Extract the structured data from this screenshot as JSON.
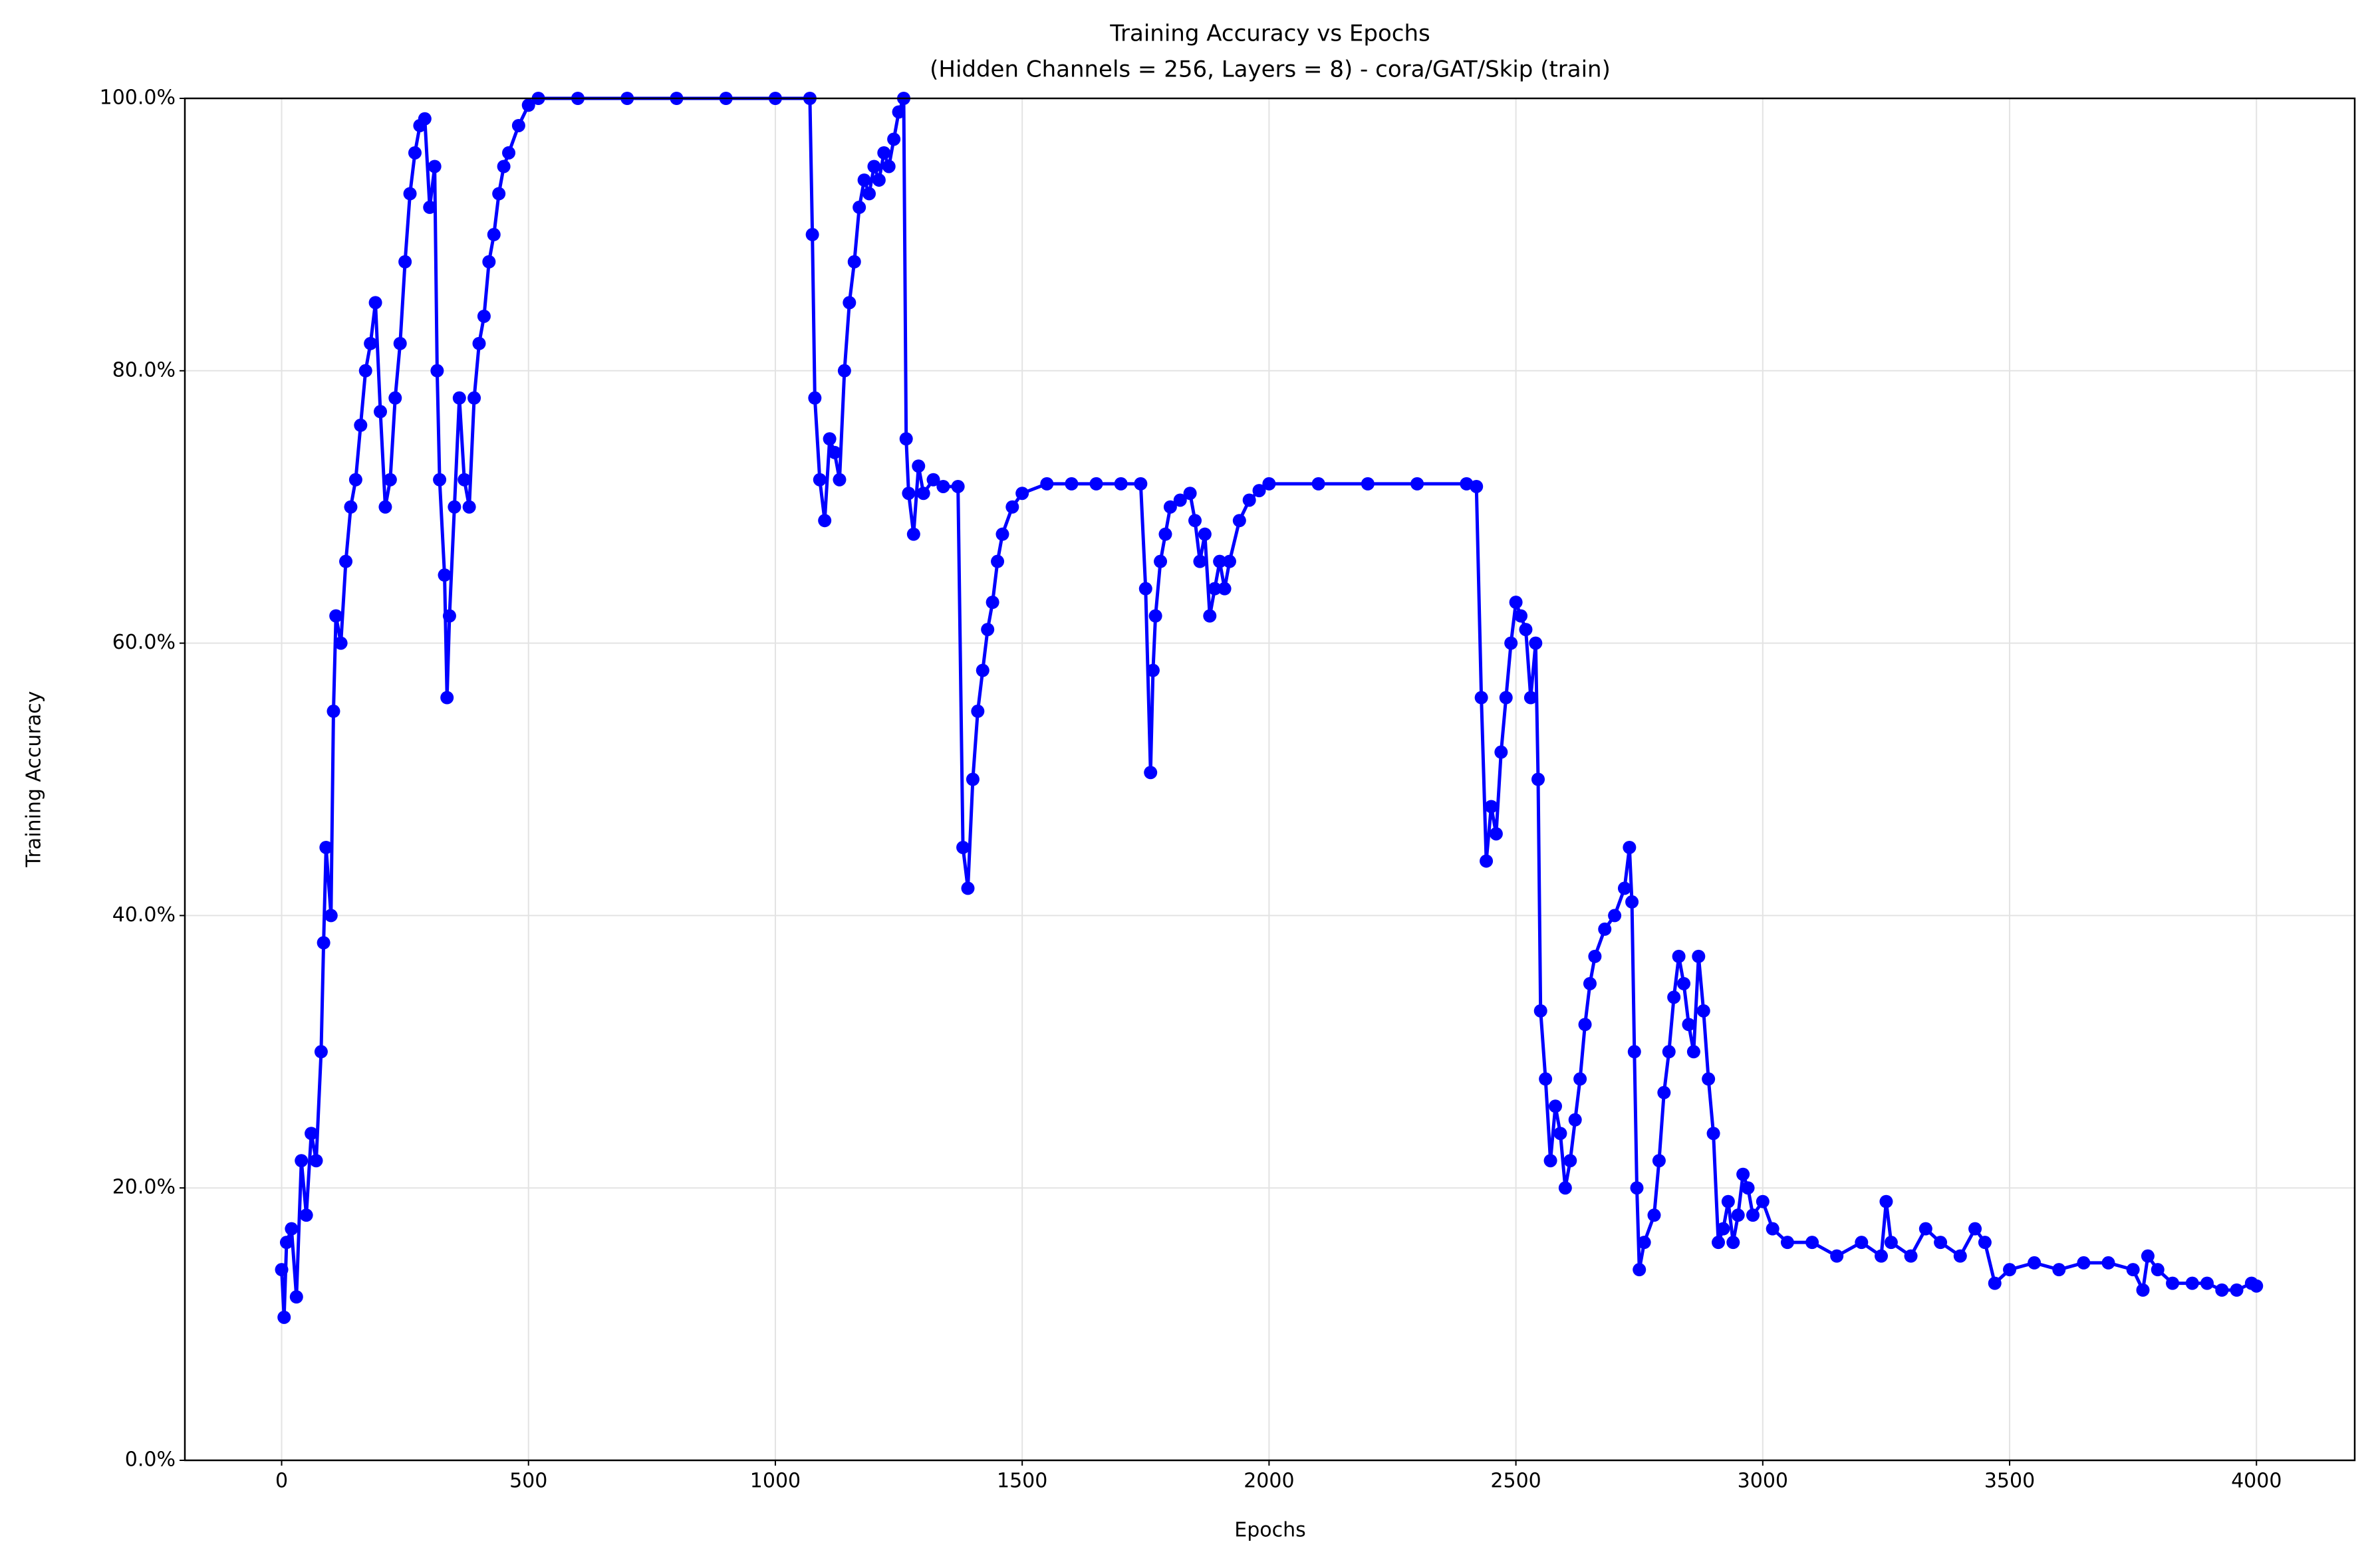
{
  "chart_data": {
    "type": "line",
    "title": "Training Accuracy vs Epochs",
    "subtitle": "(Hidden Channels = 256, Layers = 8) - cora/GAT/Skip (train)",
    "x_label": "Epochs",
    "y_label": "Training Accuracy",
    "color": "#0000ff",
    "grid": true,
    "markers": true,
    "xlim": [
      -196,
      4199
    ],
    "ylim": [
      0,
      100
    ],
    "xticks": [
      0,
      500,
      1000,
      1500,
      2000,
      2500,
      3000,
      3500,
      4000
    ],
    "yticks": [
      {
        "value": 0,
        "label": "0.0%"
      },
      {
        "value": 20,
        "label": "20.0%"
      },
      {
        "value": 40,
        "label": "40.0%"
      },
      {
        "value": 60,
        "label": "60.0%"
      },
      {
        "value": 80,
        "label": "80.0%"
      },
      {
        "value": 100,
        "label": "100.0%"
      }
    ],
    "x": [
      0,
      5,
      10,
      20,
      30,
      40,
      50,
      60,
      70,
      80,
      85,
      90,
      100,
      105,
      110,
      120,
      130,
      140,
      150,
      160,
      170,
      180,
      190,
      200,
      210,
      220,
      230,
      240,
      250,
      260,
      270,
      280,
      290,
      300,
      310,
      315,
      320,
      330,
      335,
      340,
      350,
      360,
      370,
      380,
      390,
      400,
      410,
      420,
      430,
      440,
      450,
      460,
      480,
      500,
      520,
      600,
      700,
      800,
      900,
      1000,
      1070,
      1075,
      1080,
      1090,
      1100,
      1110,
      1120,
      1130,
      1140,
      1150,
      1160,
      1170,
      1180,
      1190,
      1200,
      1210,
      1220,
      1230,
      1240,
      1250,
      1260,
      1265,
      1270,
      1280,
      1290,
      1300,
      1320,
      1340,
      1370,
      1380,
      1390,
      1400,
      1410,
      1420,
      1430,
      1440,
      1450,
      1460,
      1480,
      1500,
      1550,
      1600,
      1650,
      1700,
      1740,
      1750,
      1760,
      1765,
      1770,
      1780,
      1790,
      1800,
      1820,
      1840,
      1850,
      1860,
      1870,
      1880,
      1890,
      1900,
      1910,
      1920,
      1940,
      1960,
      1980,
      2000,
      2100,
      2200,
      2300,
      2400,
      2420,
      2430,
      2440,
      2450,
      2460,
      2470,
      2480,
      2490,
      2500,
      2510,
      2520,
      2530,
      2540,
      2545,
      2550,
      2560,
      2570,
      2580,
      2590,
      2600,
      2610,
      2620,
      2630,
      2640,
      2650,
      2660,
      2680,
      2700,
      2720,
      2730,
      2735,
      2740,
      2745,
      2750,
      2760,
      2780,
      2790,
      2800,
      2810,
      2820,
      2830,
      2840,
      2850,
      2860,
      2870,
      2880,
      2890,
      2900,
      2910,
      2920,
      2930,
      2940,
      2950,
      2960,
      2970,
      2980,
      3000,
      3020,
      3050,
      3100,
      3150,
      3200,
      3240,
      3250,
      3260,
      3300,
      3330,
      3360,
      3400,
      3430,
      3450,
      3470,
      3500,
      3550,
      3600,
      3650,
      3700,
      3750,
      3770,
      3780,
      3800,
      3830,
      3870,
      3900,
      3930,
      3960,
      3990,
      4000
    ],
    "values": [
      14,
      10.5,
      16,
      17,
      12,
      22,
      18,
      24,
      22,
      30,
      38,
      45,
      40,
      55,
      62,
      60,
      66,
      70,
      72,
      76,
      80,
      82,
      85,
      77,
      70,
      72,
      78,
      82,
      88,
      93,
      96,
      98,
      98.5,
      92,
      95,
      80,
      72,
      65,
      56,
      62,
      70,
      78,
      72,
      70,
      78,
      82,
      84,
      88,
      90,
      93,
      95,
      96,
      98,
      99.5,
      100,
      100,
      100,
      100,
      100,
      100,
      100,
      90,
      78,
      72,
      69,
      75,
      74,
      72,
      80,
      85,
      88,
      92,
      94,
      93,
      95,
      94,
      96,
      95,
      97,
      99,
      100,
      75,
      71,
      68,
      73,
      71,
      72,
      71.5,
      71.5,
      45,
      42,
      50,
      55,
      58,
      61,
      63,
      66,
      68,
      70,
      71,
      71.7,
      71.7,
      71.7,
      71.7,
      71.7,
      64,
      50.5,
      58,
      62,
      66,
      68,
      70,
      70.5,
      71,
      69,
      66,
      68,
      62,
      64,
      66,
      64,
      66,
      69,
      70.5,
      71.2,
      71.7,
      71.7,
      71.7,
      71.7,
      71.7,
      71.5,
      56,
      44,
      48,
      46,
      52,
      56,
      60,
      63,
      62,
      61,
      56,
      60,
      50,
      33,
      28,
      22,
      26,
      24,
      20,
      22,
      25,
      28,
      32,
      35,
      37,
      39,
      40,
      42,
      45,
      41,
      30,
      20,
      14,
      16,
      18,
      22,
      27,
      30,
      34,
      37,
      35,
      32,
      30,
      37,
      33,
      28,
      24,
      16,
      17,
      19,
      16,
      18,
      21,
      20,
      18,
      19,
      17,
      16,
      16,
      15,
      16,
      15,
      19,
      16,
      15,
      17,
      16,
      15,
      17,
      16,
      13,
      14,
      14.5,
      14,
      14.5,
      14.5,
      14,
      12.5,
      15,
      14,
      13,
      13,
      13,
      12.5,
      12.5,
      13,
      12.8
    ]
  }
}
